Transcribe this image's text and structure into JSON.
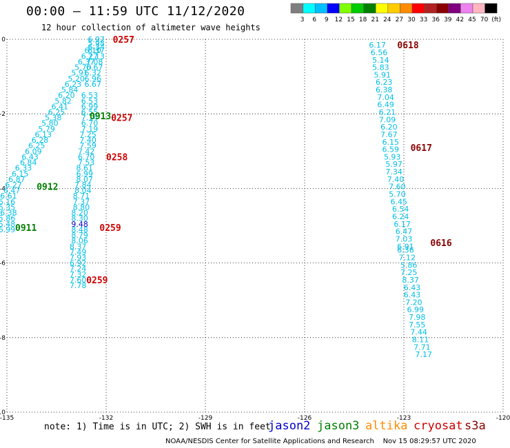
{
  "header": {
    "title": "00:00 — 11:59 UTC 11/12/2020",
    "subtitle": "12 hour collection of altimeter wave heights"
  },
  "colorbar": {
    "ticks": [
      "3",
      "6",
      "9",
      "12",
      "15",
      "18",
      "21",
      "24",
      "27",
      "30",
      "33",
      "36",
      "39",
      "42",
      "45",
      "70",
      "(ft)"
    ],
    "colors": [
      "#7f7f7f",
      "#00ffff",
      "#00bfff",
      "#0000ff",
      "#7fff00",
      "#00cc00",
      "#008000",
      "#ffff00",
      "#ffcc00",
      "#ff8c00",
      "#ff0000",
      "#b22222",
      "#8b0000",
      "#800080",
      "#ee82ee",
      "#ffb6c1",
      "#000000"
    ]
  },
  "chart_data": {
    "type": "scatter",
    "xlim": [
      -135,
      -120
    ],
    "ylim": [
      -10,
      0
    ],
    "x_ticks": [
      "-135",
      "-132",
      "-129",
      "-126",
      "-123",
      "-120"
    ],
    "y_ticks": [
      "0",
      "-2",
      "-4",
      "-6",
      "-8",
      "-10"
    ],
    "grid": true,
    "colors": {
      "jason2": "#0000cc",
      "jason3": "#008000",
      "altika": "#ff8c00",
      "cryosat": "#cc0000",
      "s3a": "#8b0000",
      "swh_low": "#00bfe6",
      "swh_mid": "#0000cc"
    },
    "track_a": [
      {
        "x": -132.3,
        "y": 0.0,
        "v": "6.97"
      },
      {
        "x": -132.3,
        "y": -0.1,
        "v": "5.98"
      },
      {
        "x": -132.3,
        "y": -0.2,
        "v": "6.34"
      },
      {
        "x": -132.4,
        "y": -0.3,
        "v": "6.10"
      },
      {
        "x": -132.3,
        "y": -0.3,
        "v": "6.37"
      },
      {
        "x": -132.5,
        "y": -0.45,
        "v": "6.27"
      },
      {
        "x": -132.3,
        "y": -0.45,
        "v": "7.13"
      },
      {
        "x": -132.6,
        "y": -0.6,
        "v": "6.37"
      },
      {
        "x": -132.35,
        "y": -0.6,
        "v": "7.08"
      },
      {
        "x": -132.7,
        "y": -0.75,
        "v": "5.70"
      },
      {
        "x": -132.35,
        "y": -0.75,
        "v": "6.67"
      },
      {
        "x": -132.8,
        "y": -0.9,
        "v": "5.91"
      },
      {
        "x": -132.4,
        "y": -0.9,
        "v": "6.32"
      },
      {
        "x": -132.9,
        "y": -1.05,
        "v": "5.20"
      },
      {
        "x": -132.4,
        "y": -1.05,
        "v": "6.96"
      },
      {
        "x": -133.0,
        "y": -1.2,
        "v": "6.23"
      },
      {
        "x": -132.4,
        "y": -1.2,
        "v": "6.67"
      },
      {
        "x": -133.1,
        "y": -1.35,
        "v": "5.84"
      },
      {
        "x": -133.2,
        "y": -1.5,
        "v": "6.20"
      },
      {
        "x": -132.5,
        "y": -1.5,
        "v": "6.53"
      },
      {
        "x": -133.3,
        "y": -1.65,
        "v": "5.82"
      },
      {
        "x": -132.5,
        "y": -1.65,
        "v": "6.53"
      },
      {
        "x": -133.4,
        "y": -1.8,
        "v": "6.41"
      },
      {
        "x": -132.5,
        "y": -1.8,
        "v": "6.99"
      },
      {
        "x": -133.5,
        "y": -1.95,
        "v": "6.25"
      },
      {
        "x": -132.5,
        "y": -1.95,
        "v": "6.55"
      },
      {
        "x": -133.6,
        "y": -2.1,
        "v": "5.38"
      },
      {
        "x": -132.5,
        "y": -2.1,
        "v": "7.14"
      },
      {
        "x": -133.7,
        "y": -2.25,
        "v": "5.80"
      },
      {
        "x": -132.5,
        "y": -2.25,
        "v": "6.70"
      },
      {
        "x": -133.8,
        "y": -2.4,
        "v": "5.79"
      },
      {
        "x": -132.5,
        "y": -2.4,
        "v": "7.19"
      },
      {
        "x": -133.9,
        "y": -2.55,
        "v": "6.13"
      },
      {
        "x": -132.55,
        "y": -2.55,
        "v": "7.25"
      },
      {
        "x": -134.0,
        "y": -2.7,
        "v": "6.28"
      },
      {
        "x": -132.55,
        "y": -2.7,
        "v": "7.40"
      },
      {
        "x": -134.1,
        "y": -2.85,
        "v": "6.25"
      },
      {
        "x": -132.55,
        "y": -2.85,
        "v": "7.59"
      },
      {
        "x": -134.2,
        "y": -3.0,
        "v": "6.09"
      },
      {
        "x": -132.6,
        "y": -3.0,
        "v": "7.42"
      },
      {
        "x": -134.3,
        "y": -3.15,
        "v": "6.43"
      },
      {
        "x": -132.6,
        "y": -3.15,
        "v": "6.70"
      },
      {
        "x": -134.35,
        "y": -3.3,
        "v": "6.84"
      },
      {
        "x": -132.6,
        "y": -3.3,
        "v": "7.53"
      },
      {
        "x": -134.5,
        "y": -3.45,
        "v": "6.33"
      },
      {
        "x": -132.65,
        "y": -3.45,
        "v": "8.61"
      },
      {
        "x": -134.6,
        "y": -3.6,
        "v": "6.15"
      },
      {
        "x": -132.65,
        "y": -3.6,
        "v": "6.99"
      },
      {
        "x": -134.7,
        "y": -3.75,
        "v": "6.87"
      },
      {
        "x": -132.65,
        "y": -3.75,
        "v": "8.07"
      },
      {
        "x": -134.8,
        "y": -3.9,
        "v": "6.27"
      },
      {
        "x": -132.7,
        "y": -3.9,
        "v": "7.84"
      },
      {
        "x": -134.85,
        "y": -4.05,
        "v": "6.47"
      },
      {
        "x": -132.7,
        "y": -4.05,
        "v": "8.04"
      },
      {
        "x": -134.95,
        "y": -4.2,
        "v": "6.61"
      },
      {
        "x": -132.75,
        "y": -4.2,
        "v": "8.71"
      },
      {
        "x": -135.0,
        "y": -4.35,
        "v": "6.16"
      },
      {
        "x": -132.75,
        "y": -4.35,
        "v": "7.37"
      },
      {
        "x": -135.0,
        "y": -4.5,
        "v": "6.35"
      },
      {
        "x": -132.75,
        "y": -4.5,
        "v": "8.80"
      },
      {
        "x": -134.95,
        "y": -4.65,
        "v": "6.38"
      },
      {
        "x": -132.8,
        "y": -4.65,
        "v": "8.20"
      },
      {
        "x": -135.0,
        "y": -4.8,
        "v": "5.86"
      },
      {
        "x": -132.8,
        "y": -4.8,
        "v": "8.30"
      },
      {
        "x": -135.0,
        "y": -4.95,
        "v": "5.48"
      },
      {
        "x": -132.8,
        "y": -4.95,
        "v": "9.48"
      },
      {
        "x": -135.0,
        "y": -5.1,
        "v": "6.99"
      },
      {
        "x": -132.8,
        "y": -5.1,
        "v": "8.48"
      },
      {
        "x": -132.8,
        "y": -5.25,
        "v": "8.79"
      },
      {
        "x": -132.8,
        "y": -5.4,
        "v": "8.06"
      },
      {
        "x": -132.85,
        "y": -5.55,
        "v": "8.37"
      },
      {
        "x": -132.85,
        "y": -5.7,
        "v": "7.49"
      },
      {
        "x": -132.85,
        "y": -5.85,
        "v": "7.93"
      },
      {
        "x": -132.85,
        "y": -6.0,
        "v": "6.92"
      },
      {
        "x": -132.85,
        "y": -6.15,
        "v": "7.24"
      },
      {
        "x": -132.85,
        "y": -6.3,
        "v": "7.32"
      },
      {
        "x": -132.85,
        "y": -6.45,
        "v": "7.60"
      },
      {
        "x": -132.85,
        "y": -6.6,
        "v": "7.78"
      }
    ],
    "track_b": [
      {
        "x": -123.8,
        "y": -0.15,
        "v": "6.17"
      },
      {
        "x": -123.75,
        "y": -0.35,
        "v": "6.56"
      },
      {
        "x": -123.7,
        "y": -0.55,
        "v": "5.14"
      },
      {
        "x": -123.7,
        "y": -0.75,
        "v": "5.83"
      },
      {
        "x": -123.65,
        "y": -0.95,
        "v": "5.91"
      },
      {
        "x": -123.6,
        "y": -1.15,
        "v": "6.23"
      },
      {
        "x": -123.6,
        "y": -1.35,
        "v": "6.38"
      },
      {
        "x": -123.55,
        "y": -1.55,
        "v": "7.04"
      },
      {
        "x": -123.55,
        "y": -1.75,
        "v": "6.49"
      },
      {
        "x": -123.5,
        "y": -1.95,
        "v": "6.21"
      },
      {
        "x": -123.5,
        "y": -2.15,
        "v": "7.09"
      },
      {
        "x": -123.45,
        "y": -2.35,
        "v": "6.20"
      },
      {
        "x": -123.45,
        "y": -2.55,
        "v": "7.67"
      },
      {
        "x": -123.4,
        "y": -2.75,
        "v": "6.15"
      },
      {
        "x": -123.4,
        "y": -2.95,
        "v": "6.59"
      },
      {
        "x": -123.35,
        "y": -3.15,
        "v": "5.93"
      },
      {
        "x": -123.3,
        "y": -3.35,
        "v": "5.97"
      },
      {
        "x": -123.3,
        "y": -3.55,
        "v": "7.34"
      },
      {
        "x": -123.25,
        "y": -3.75,
        "v": "7.40"
      },
      {
        "x": -123.2,
        "y": -3.95,
        "v": "7.60"
      },
      {
        "x": -123.2,
        "y": -4.15,
        "v": "5.70"
      },
      {
        "x": -123.15,
        "y": -4.35,
        "v": "6.45"
      },
      {
        "x": -123.1,
        "y": -4.55,
        "v": "6.54"
      },
      {
        "x": -123.1,
        "y": -4.75,
        "v": "6.24"
      },
      {
        "x": -123.05,
        "y": -4.95,
        "v": "6.17"
      },
      {
        "x": -123.0,
        "y": -5.15,
        "v": "6.47"
      },
      {
        "x": -123.0,
        "y": -5.35,
        "v": "7.03"
      },
      {
        "x": -122.95,
        "y": -5.55,
        "v": "6.91"
      },
      {
        "x": -122.95,
        "y": -5.65,
        "v": "6.36"
      },
      {
        "x": -122.9,
        "y": -5.85,
        "v": "7.12"
      },
      {
        "x": -122.85,
        "y": -6.05,
        "v": "5.86"
      },
      {
        "x": -122.85,
        "y": -6.25,
        "v": "7.25"
      },
      {
        "x": -122.8,
        "y": -6.45,
        "v": "8.37"
      },
      {
        "x": -122.75,
        "y": -6.65,
        "v": "6.43"
      },
      {
        "x": -122.75,
        "y": -6.85,
        "v": "6.43"
      },
      {
        "x": -122.7,
        "y": -7.05,
        "v": "7.20"
      },
      {
        "x": -122.65,
        "y": -7.25,
        "v": "6.99"
      },
      {
        "x": -122.6,
        "y": -7.45,
        "v": "7.98"
      },
      {
        "x": -122.6,
        "y": -7.65,
        "v": "7.55"
      },
      {
        "x": -122.55,
        "y": -7.85,
        "v": "7.44"
      },
      {
        "x": -122.5,
        "y": -8.05,
        "v": "8.11"
      },
      {
        "x": -122.45,
        "y": -8.25,
        "v": "7.71"
      },
      {
        "x": -122.4,
        "y": -8.45,
        "v": "7.17"
      }
    ],
    "time_labels": [
      {
        "x": -131.8,
        "y": 0.0,
        "t": "0257",
        "sat": "cryosat"
      },
      {
        "x": -131.85,
        "y": -2.1,
        "t": "0257",
        "sat": "cryosat"
      },
      {
        "x": -132.5,
        "y": -2.05,
        "t": "0913",
        "sat": "jason3"
      },
      {
        "x": -132.0,
        "y": -3.15,
        "t": "0258",
        "sat": "cryosat"
      },
      {
        "x": -134.1,
        "y": -3.95,
        "t": "0912",
        "sat": "jason3"
      },
      {
        "x": -132.2,
        "y": -5.05,
        "t": "0259",
        "sat": "cryosat"
      },
      {
        "x": -134.75,
        "y": -5.05,
        "t": "0911",
        "sat": "jason3"
      },
      {
        "x": -132.6,
        "y": -6.45,
        "t": "0259",
        "sat": "cryosat"
      },
      {
        "x": -123.2,
        "y": -0.15,
        "t": "0618",
        "sat": "s3a"
      },
      {
        "x": -122.8,
        "y": -2.9,
        "t": "0617",
        "sat": "s3a"
      },
      {
        "x": -122.2,
        "y": -5.45,
        "t": "0616",
        "sat": "s3a"
      }
    ]
  },
  "note": "note: 1) Time is in UTC; 2) SWH is in feet",
  "legend": [
    {
      "label": "jason2",
      "color": "#0000cc"
    },
    {
      "label": "jason3",
      "color": "#008000"
    },
    {
      "label": "altika",
      "color": "#ff8c00"
    },
    {
      "label": "cryosat",
      "color": "#cc0000"
    },
    {
      "label": "s3a",
      "color": "#8b0000"
    }
  ],
  "footer": "NOAA/NESDIS Center for Satellite Applications and Research    Nov 15 08:29:57 UTC 2020"
}
